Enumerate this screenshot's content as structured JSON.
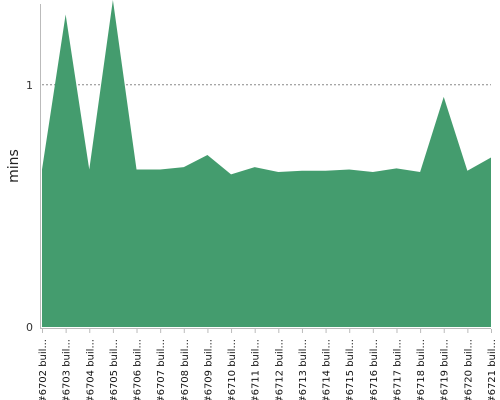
{
  "chart_data": {
    "type": "area",
    "title": "",
    "xlabel": "",
    "ylabel": "mins",
    "ylim": [
      0,
      1.35
    ],
    "y_ticks": [
      {
        "value": 0,
        "label": "0"
      },
      {
        "value": 1,
        "label": "1"
      }
    ],
    "gridlines": [
      {
        "value": 1,
        "style": "dotted"
      }
    ],
    "categories": [
      "#6702 buil...",
      "#6703 buil...",
      "#6704 buil...",
      "#6705 buil...",
      "#6706 buil...",
      "#6707 buil...",
      "#6708 buil...",
      "#6709 buil...",
      "#6710 buil...",
      "#6711 buil...",
      "#6712 buil...",
      "#6713 buil...",
      "#6714 buil...",
      "#6715 buil...",
      "#6716 buil...",
      "#6717 buil...",
      "#6718 buil...",
      "#6719 buil...",
      "#6720 buil...",
      "#6721 buil..."
    ],
    "series": [
      {
        "values": [
          0.65,
          1.29,
          0.65,
          1.35,
          0.65,
          0.65,
          0.66,
          0.71,
          0.63,
          0.66,
          0.64,
          0.645,
          0.645,
          0.65,
          0.64,
          0.655,
          0.64,
          0.95,
          0.645,
          0.7
        ],
        "color": "#449c6e"
      }
    ],
    "colors": {
      "area_fill": "#449c6e",
      "gridline": "#888888",
      "axis": "#bbbbbb"
    }
  }
}
